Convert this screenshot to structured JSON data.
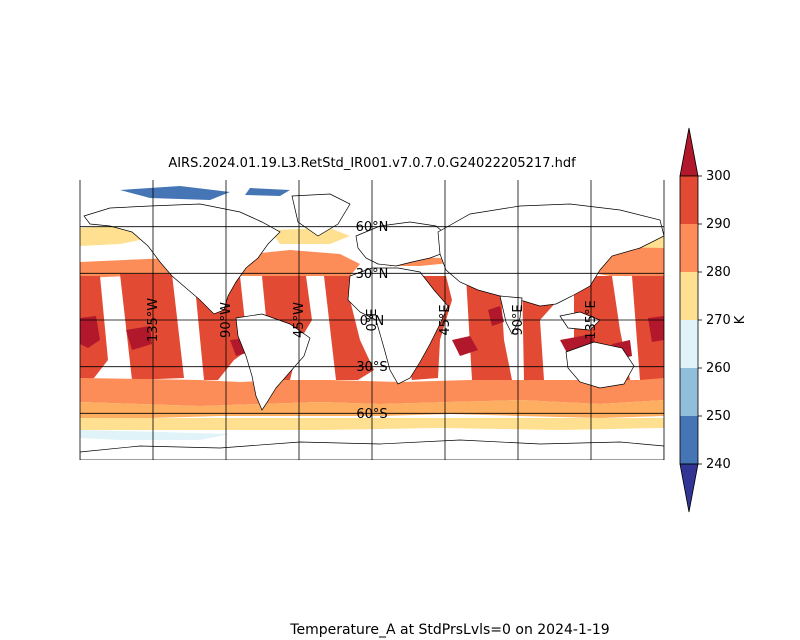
{
  "figure": {
    "title": "AIRS.2024.01.19.L3.RetStd_IR001.v7.0.7.0.G24022205217.hdf",
    "caption": "Temperature_A at StdPrsLvls=0 on 2024-1-19"
  },
  "map": {
    "projection": "equirectangular",
    "lon_range": [
      -180,
      180
    ],
    "lat_range": [
      -90,
      90
    ],
    "lat_labels": [
      "60°N",
      "30°N",
      "0°N",
      "30°S",
      "60°S"
    ],
    "lon_labels": [
      "135°W",
      "90°W",
      "45°W",
      "0°E",
      "45°E",
      "90°E",
      "135°E"
    ],
    "field_description": "ocean-only surface air temperature, ascending orbit swaths"
  },
  "colorbar": {
    "unit": "K",
    "ticks": [
      "240",
      "250",
      "260",
      "270",
      "280",
      "290",
      "300"
    ],
    "min": 240,
    "max": 300,
    "colors": [
      "#4575b4",
      "#91bfdb",
      "#e0f3f8",
      "#fee090",
      "#fc8d59",
      "#e34a33",
      "#b2182b",
      "#313695"
    ]
  }
}
